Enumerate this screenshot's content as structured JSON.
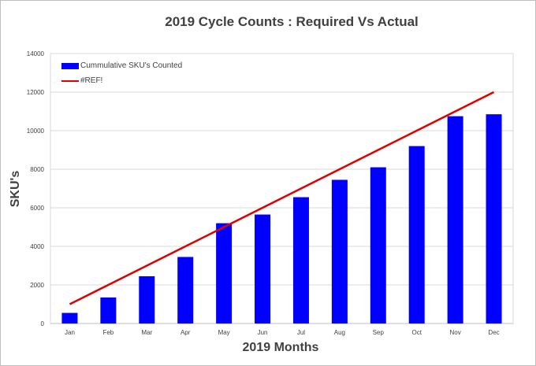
{
  "chart_data": {
    "type": "bar",
    "title": "2019 Cycle Counts : Required Vs Actual",
    "xlabel": "2019 Months",
    "ylabel": "SKU's",
    "categories": [
      "Jan",
      "Feb",
      "Mar",
      "Apr",
      "May",
      "Jun",
      "Jul",
      "Aug",
      "Sep",
      "Oct",
      "Nov",
      "Dec"
    ],
    "ylim": [
      0,
      14000
    ],
    "yticks": [
      0,
      2000,
      4000,
      6000,
      8000,
      10000,
      12000,
      14000
    ],
    "grid": true,
    "legend_position": "top-left",
    "series": [
      {
        "name": "Cummulative SKU's Counted",
        "type": "bar",
        "color": "#0000ff",
        "values": [
          550,
          1350,
          2450,
          3450,
          5200,
          5650,
          6550,
          7450,
          8100,
          9200,
          10750,
          10850
        ]
      },
      {
        "name": "#REF!",
        "type": "line",
        "color": "#e00000",
        "values": [
          1000,
          2000,
          3000,
          4000,
          5000,
          6000,
          7000,
          8000,
          9000,
          10000,
          11000,
          12000
        ]
      }
    ]
  }
}
